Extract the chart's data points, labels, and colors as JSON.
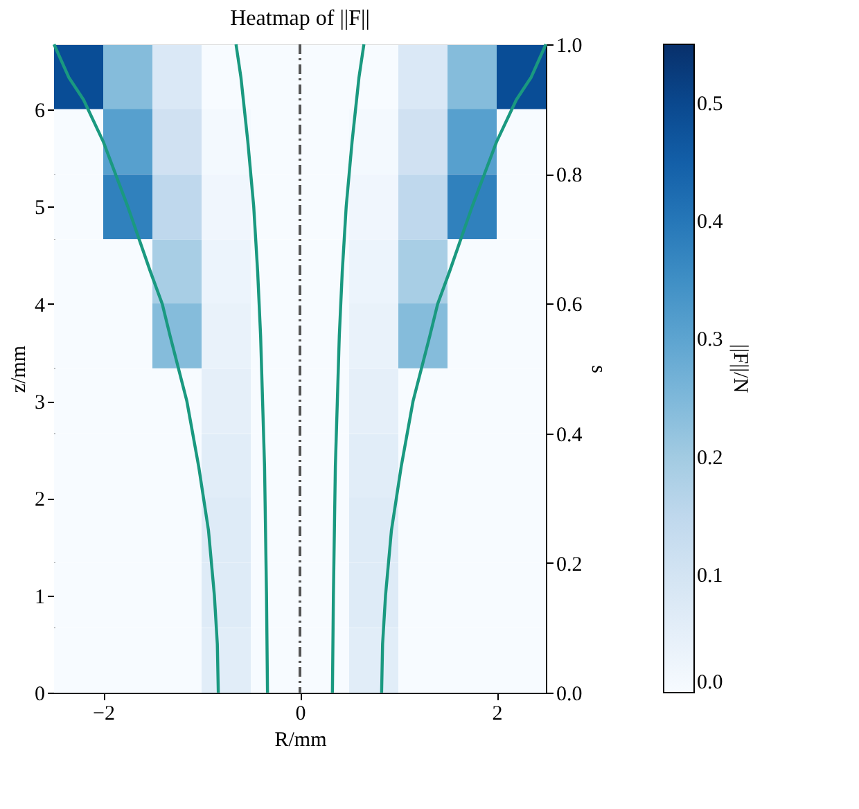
{
  "chart_data": {
    "type": "heatmap",
    "title": "Heatmap of ||F||",
    "xlabel": "R/mm",
    "ylabel": "z/mm",
    "y2label": "s",
    "clabel": "||F||/N",
    "x": [
      -2.25,
      -1.75,
      -1.25,
      -0.75,
      -0.25,
      0.25,
      0.75,
      1.25,
      1.75,
      2.25
    ],
    "y": [
      6.33,
      5.67,
      5.0,
      4.33,
      3.67,
      3.0,
      2.33,
      1.67,
      1.0,
      0.33
    ],
    "cells": [
      [
        0.49,
        0.24,
        0.08,
        0.0,
        0.0,
        0.0,
        0.0,
        0.08,
        0.24,
        0.49
      ],
      [
        0.0,
        0.31,
        0.11,
        0.01,
        0.0,
        0.0,
        0.01,
        0.11,
        0.31,
        0.0
      ],
      [
        0.0,
        0.38,
        0.15,
        0.02,
        0.0,
        0.0,
        0.02,
        0.15,
        0.38,
        0.0
      ],
      [
        0.0,
        0.0,
        0.19,
        0.03,
        0.0,
        0.0,
        0.03,
        0.19,
        0.0,
        0.0
      ],
      [
        0.0,
        0.0,
        0.24,
        0.04,
        0.0,
        0.0,
        0.04,
        0.24,
        0.0,
        0.0
      ],
      [
        0.0,
        0.0,
        0.0,
        0.05,
        0.0,
        0.0,
        0.05,
        0.0,
        0.0,
        0.0
      ],
      [
        0.0,
        0.0,
        0.0,
        0.06,
        0.0,
        0.0,
        0.06,
        0.0,
        0.0,
        0.0
      ],
      [
        0.0,
        0.0,
        0.0,
        0.07,
        0.0,
        0.0,
        0.07,
        0.0,
        0.0,
        0.0
      ],
      [
        0.0,
        0.0,
        0.0,
        0.07,
        0.0,
        0.0,
        0.07,
        0.0,
        0.0,
        0.0
      ],
      [
        0.0,
        0.0,
        0.0,
        0.06,
        0.0,
        0.0,
        0.06,
        0.0,
        0.0,
        0.0
      ]
    ],
    "clim": [
      0,
      0.55
    ],
    "cticks": [
      {
        "value": 0,
        "label": "0.0"
      },
      {
        "value": 0.1,
        "label": "0.1"
      },
      {
        "value": 0.2,
        "label": "0.2"
      },
      {
        "value": 0.3,
        "label": "0.3"
      },
      {
        "value": 0.4,
        "label": "0.4"
      },
      {
        "value": 0.5,
        "label": "0.5"
      }
    ],
    "xlim": [
      -2.5,
      2.5
    ],
    "xticks": [
      {
        "value": -2,
        "label": "−2"
      },
      0,
      2
    ],
    "ylim": [
      0,
      6.67
    ],
    "yticks": [
      0,
      1,
      2,
      3,
      4,
      5,
      6
    ],
    "y2lim": [
      0,
      1
    ],
    "y2ticks": [
      {
        "value": 0,
        "label": "0.0"
      },
      {
        "value": 0.2,
        "label": "0.2"
      },
      {
        "value": 0.4,
        "label": "0.4"
      },
      {
        "value": 0.6,
        "label": "0.6"
      },
      {
        "value": 0.8,
        "label": "0.8"
      },
      {
        "value": 1,
        "label": "1.0"
      }
    ],
    "series": [
      {
        "type": "line",
        "color": "#1a9980",
        "x": [
          0.83,
          0.84,
          0.87,
          0.93,
          0.98,
          1.03,
          1.15,
          1.32,
          1.4,
          1.52,
          1.75,
          2.0,
          2.2,
          2.35,
          2.5
        ],
        "values": [
          0,
          0.5,
          1,
          1.67,
          2,
          2.33,
          3,
          3.67,
          4,
          4.33,
          5,
          5.67,
          6.1,
          6.33,
          6.67
        ]
      },
      {
        "type": "line",
        "color": "#1a9980",
        "x": [
          -0.83,
          -0.84,
          -0.87,
          -0.93,
          -0.98,
          -1.03,
          -1.15,
          -1.32,
          -1.4,
          -1.52,
          -1.75,
          -2.0,
          -2.2,
          -2.35,
          -2.5
        ],
        "values": [
          0,
          0.5,
          1,
          1.67,
          2,
          2.33,
          3,
          3.67,
          4,
          4.33,
          5,
          5.67,
          6.1,
          6.33,
          6.67
        ]
      },
      {
        "type": "line",
        "color": "#1a9980",
        "x": [
          0.33,
          0.34,
          0.35,
          0.36,
          0.38,
          0.4,
          0.43,
          0.47,
          0.53,
          0.6,
          0.65
        ],
        "values": [
          0,
          1,
          1.67,
          2.33,
          3,
          3.67,
          4.33,
          5,
          5.67,
          6.33,
          6.67
        ]
      },
      {
        "type": "line",
        "color": "#1a9980",
        "x": [
          -0.33,
          -0.34,
          -0.35,
          -0.36,
          -0.38,
          -0.4,
          -0.43,
          -0.47,
          -0.53,
          -0.6,
          -0.65
        ],
        "values": [
          0,
          1,
          1.67,
          2.33,
          3,
          3.67,
          4.33,
          5,
          5.67,
          6.33,
          6.67
        ]
      }
    ],
    "ref_lines": [
      {
        "axis": "x",
        "value": 0,
        "color": "#555555",
        "line_style": "dashed"
      }
    ],
    "grid": false
  }
}
